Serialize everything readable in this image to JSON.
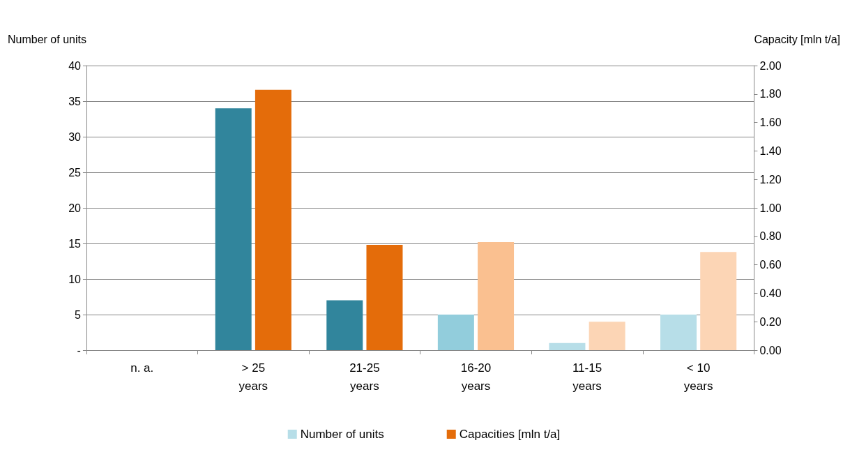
{
  "chart_data": {
    "type": "bar",
    "ylabel": "Number of units",
    "y2label": "Capacity [mln t/a]",
    "categories": [
      "n. a.",
      "> 25\nyears",
      "21-25\nyears",
      "16-20\nyears",
      "11-15\nyears",
      "< 10\nyears"
    ],
    "series": [
      {
        "name": "Number of units",
        "color": "#b7dee8",
        "values": [
          null,
          34,
          7,
          5,
          1,
          5
        ],
        "colors": [
          "#31859c",
          "#31859c",
          "#31859c",
          "#92cddc",
          "#b7dee8",
          "#b7dee8"
        ]
      },
      {
        "name": "Capacities [mln t/a]",
        "color": "#e46c0a",
        "axis": "y2",
        "values": [
          null,
          1.83,
          0.74,
          0.76,
          0.2,
          0.69
        ],
        "colors": [
          "#e46c0a",
          "#e46c0a",
          "#e46c0a",
          "#fac090",
          "#fcd5b5",
          "#fcd5b5"
        ]
      }
    ],
    "ylim": [
      0,
      40
    ],
    "yticks": [
      {
        "value": 0,
        "label": "-"
      },
      5,
      10,
      15,
      20,
      25,
      30,
      35,
      40
    ],
    "y2lim": [
      0,
      2
    ],
    "y2ticks": [
      {
        "value": 0,
        "label": "0.00"
      },
      {
        "value": 0.2,
        "label": "0.20"
      },
      {
        "value": 0.4,
        "label": "0.40"
      },
      {
        "value": 0.6,
        "label": "0.60"
      },
      {
        "value": 0.8,
        "label": "0.80"
      },
      {
        "value": 1,
        "label": "1.00"
      },
      {
        "value": 1.2,
        "label": "1.20"
      },
      {
        "value": 1.4,
        "label": "1.40"
      },
      {
        "value": 1.6,
        "label": "1.60"
      },
      {
        "value": 1.8,
        "label": "1.80"
      },
      {
        "value": 2,
        "label": "2.00"
      }
    ],
    "grid": "y",
    "legend": "bottom"
  }
}
